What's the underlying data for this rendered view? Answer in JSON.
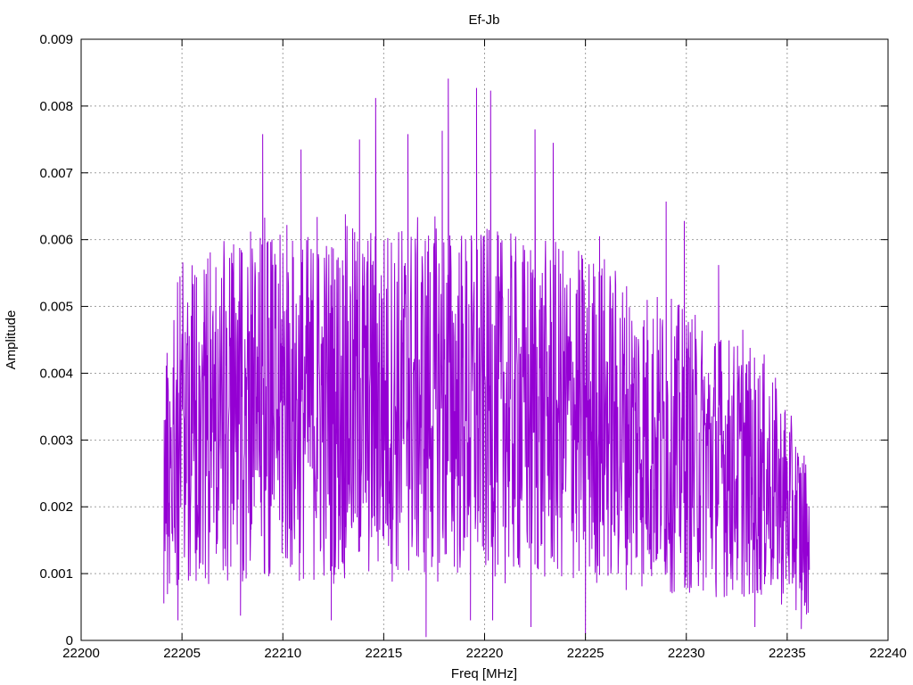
{
  "chart_data": {
    "type": "line",
    "title": "Ef-Jb",
    "xlabel": "Freq [MHz]",
    "ylabel": "Amplitude",
    "xlim": [
      22200,
      22240
    ],
    "ylim": [
      0,
      0.009
    ],
    "xticks": [
      22200,
      22205,
      22210,
      22215,
      22220,
      22225,
      22230,
      22235,
      22240
    ],
    "yticks": [
      "0",
      "0.001",
      "0.002",
      "0.003",
      "0.004",
      "0.005",
      "0.006",
      "0.007",
      "0.008",
      "0.009"
    ],
    "grid": true,
    "series": [
      {
        "color": "#9400d3",
        "x_range": [
          22204.1,
          22236.1
        ],
        "peaks": [
          [
            22204.9,
            0.00545
          ],
          [
            22206.1,
            0.00555
          ],
          [
            22207.5,
            0.00565
          ],
          [
            22208.4,
            0.00612
          ],
          [
            22209.0,
            0.00758
          ],
          [
            22209.1,
            0.00633
          ],
          [
            22210.0,
            0.0058
          ],
          [
            22210.2,
            0.00622
          ],
          [
            22210.9,
            0.00735
          ],
          [
            22211.7,
            0.00634
          ],
          [
            22213.1,
            0.00638
          ],
          [
            22213.8,
            0.0075
          ],
          [
            22214.6,
            0.00812
          ],
          [
            22216.2,
            0.00758
          ],
          [
            22217.9,
            0.00763
          ],
          [
            22218.2,
            0.00841
          ],
          [
            22219.6,
            0.00827
          ],
          [
            22220.3,
            0.00823
          ],
          [
            22222.5,
            0.00765
          ],
          [
            22223.4,
            0.00745
          ],
          [
            22225.7,
            0.00605
          ],
          [
            22229.0,
            0.00657
          ],
          [
            22229.9,
            0.00628
          ],
          [
            22231.6,
            0.00562
          ],
          [
            22232.8,
            0.00465
          ],
          [
            22233.8,
            0.00393
          ],
          [
            22234.9,
            0.00345
          ]
        ],
        "troughs": [
          [
            22204.8,
            0.0003
          ],
          [
            22207.9,
            0.00037
          ],
          [
            22212.4,
            0.0003
          ],
          [
            22217.1,
            5e-05
          ],
          [
            22219.3,
            0.0003
          ],
          [
            22220.4,
            0.0003
          ],
          [
            22222.3,
            0.0002
          ],
          [
            22225.0,
            0.0001
          ],
          [
            22233.4,
            0.0002
          ],
          [
            22235.7,
            0.00017
          ]
        ]
      }
    ]
  }
}
